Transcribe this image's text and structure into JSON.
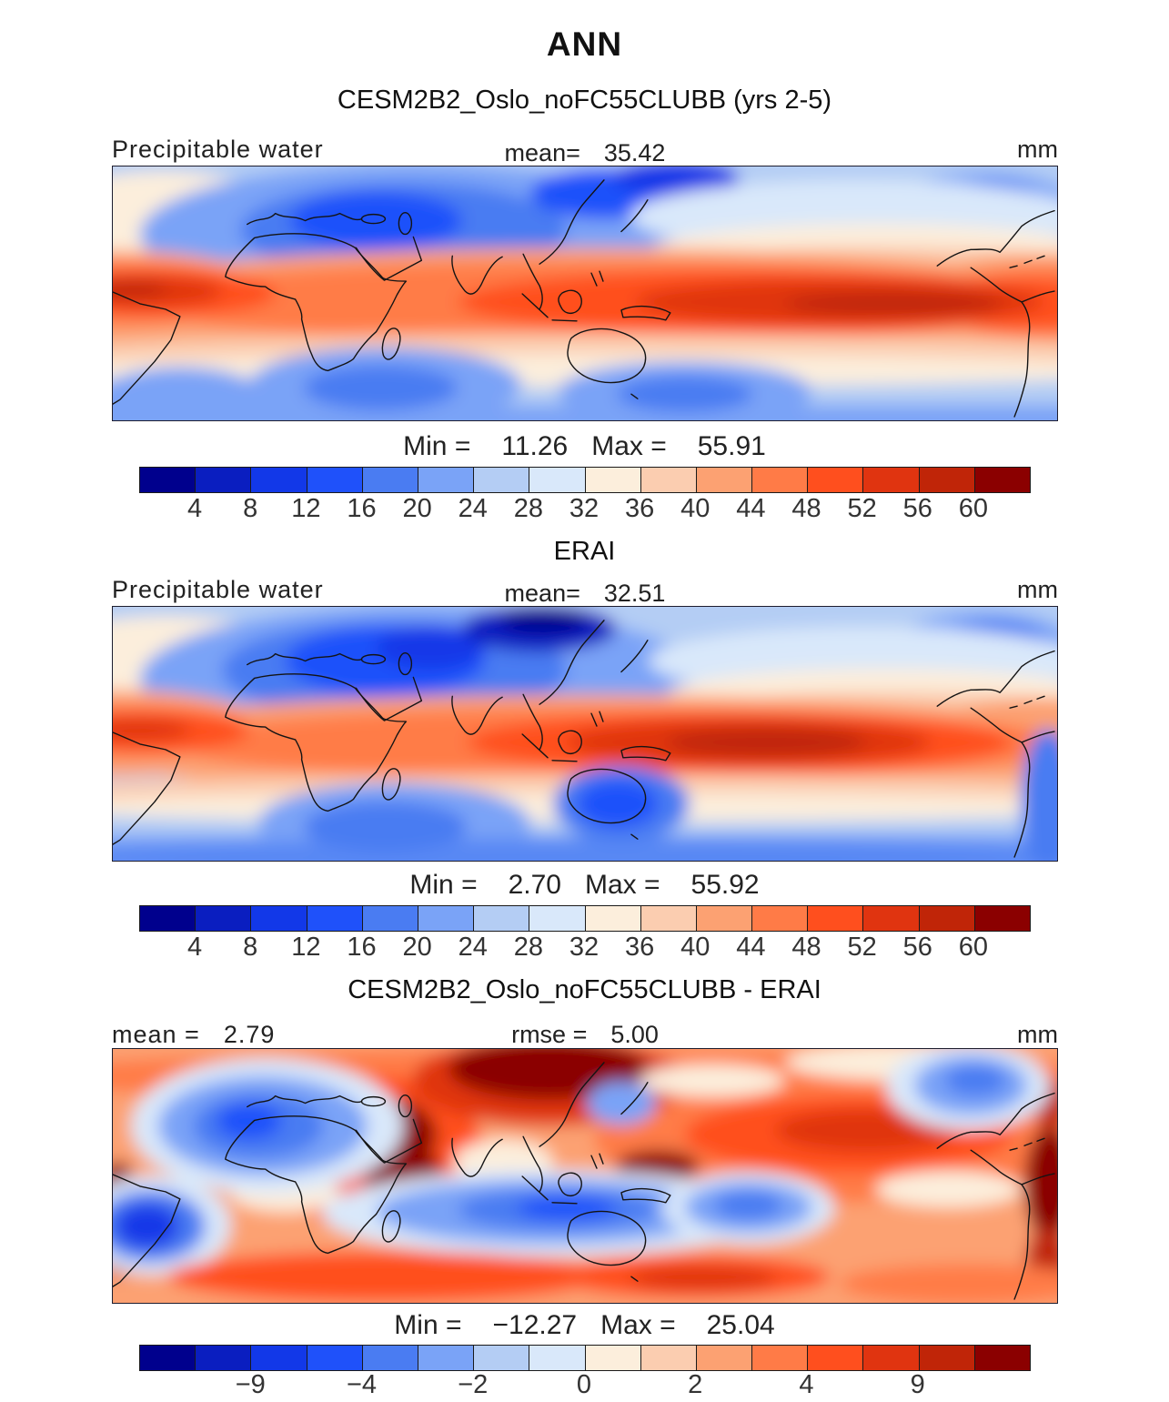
{
  "figure": {
    "title": "ANN",
    "units": "mm"
  },
  "panels": [
    {
      "heading": "CESM2B2_Oslo_noFC55CLUBB (yrs 2-5)",
      "field_label": "Precipitable water",
      "mean_label": "mean=",
      "mean_value": "35.42",
      "units": "mm",
      "min_label": "Min  =",
      "min_value": "11.26",
      "max_label": "Max  =",
      "max_value": "55.91"
    },
    {
      "heading": "ERAI",
      "field_label": "Precipitable water",
      "mean_label": "mean=",
      "mean_value": "32.51",
      "units": "mm",
      "min_label": "Min  =",
      "min_value": "2.70",
      "max_label": "Max  =",
      "max_value": "55.92"
    },
    {
      "heading": "CESM2B2_Oslo_noFC55CLUBB - ERAI",
      "mean_label": "mean  =",
      "mean_value": "2.79",
      "rmse_label": "rmse  =",
      "rmse_value": "5.00",
      "units": "mm",
      "min_label": "Min  =",
      "min_value": "−12.27",
      "max_label": "Max  =",
      "max_value": "25.04"
    }
  ],
  "colorbars": {
    "value": {
      "colors": [
        "#00008D",
        "#0A1EC0",
        "#1238E8",
        "#1F51FA",
        "#4A7CF2",
        "#7AA3F7",
        "#B4CDF4",
        "#D9E8FA",
        "#FCEEDC",
        "#FBCDB0",
        "#FCA172",
        "#FF7B47",
        "#FF4F1E",
        "#E03410",
        "#C02508",
        "#8B0000"
      ],
      "ticks": [
        {
          "text": "4",
          "pos": 1
        },
        {
          "text": "8",
          "pos": 2
        },
        {
          "text": "12",
          "pos": 3
        },
        {
          "text": "16",
          "pos": 4
        },
        {
          "text": "20",
          "pos": 5
        },
        {
          "text": "24",
          "pos": 6
        },
        {
          "text": "28",
          "pos": 7
        },
        {
          "text": "32",
          "pos": 8
        },
        {
          "text": "36",
          "pos": 9
        },
        {
          "text": "40",
          "pos": 10
        },
        {
          "text": "44",
          "pos": 11
        },
        {
          "text": "48",
          "pos": 12
        },
        {
          "text": "52",
          "pos": 13
        },
        {
          "text": "56",
          "pos": 14
        },
        {
          "text": "60",
          "pos": 15
        }
      ]
    },
    "diff": {
      "colors": [
        "#00008D",
        "#0A1EC0",
        "#1238E8",
        "#1F51FA",
        "#4A7CF2",
        "#7AA3F7",
        "#B4CDF4",
        "#D9E8FA",
        "#FCEEDC",
        "#FBCDB0",
        "#FCA172",
        "#FF7B47",
        "#FF4F1E",
        "#E03410",
        "#C02508",
        "#8B0000"
      ],
      "ticks": [
        {
          "text": "−9",
          "pos": 2
        },
        {
          "text": "−4",
          "pos": 4
        },
        {
          "text": "−2",
          "pos": 6
        },
        {
          "text": "0",
          "pos": 8
        },
        {
          "text": "2",
          "pos": 10
        },
        {
          "text": "4",
          "pos": 12
        },
        {
          "text": "9",
          "pos": 14
        }
      ]
    }
  },
  "chart_data": [
    {
      "type": "heatmap",
      "subtype": "global-filled-contour-map",
      "season": "ANN",
      "title": "CESM2B2_Oslo_noFC55CLUBB (yrs 2-5)",
      "variable": "Precipitable water",
      "units": "mm",
      "mean": 35.42,
      "min": 11.26,
      "max": 55.91,
      "contour_levels": [
        4,
        8,
        12,
        16,
        20,
        24,
        28,
        32,
        36,
        40,
        44,
        48,
        52,
        56,
        60
      ],
      "n_color_bins": 16,
      "palette_ref": "colorbars.value",
      "legend_position": "bottom"
    },
    {
      "type": "heatmap",
      "subtype": "global-filled-contour-map",
      "season": "ANN",
      "title": "ERAI",
      "variable": "Precipitable water",
      "units": "mm",
      "mean": 32.51,
      "min": 2.7,
      "max": 55.92,
      "contour_levels": [
        4,
        8,
        12,
        16,
        20,
        24,
        28,
        32,
        36,
        40,
        44,
        48,
        52,
        56,
        60
      ],
      "n_color_bins": 16,
      "palette_ref": "colorbars.value",
      "legend_position": "bottom"
    },
    {
      "type": "heatmap",
      "subtype": "global-filled-contour-difference-map",
      "season": "ANN",
      "title": "CESM2B2_Oslo_noFC55CLUBB - ERAI",
      "variable": "Precipitable water difference",
      "units": "mm",
      "mean": 2.79,
      "rmse": 5.0,
      "min": -12.27,
      "max": 25.04,
      "labeled_levels": [
        -9,
        -4,
        -2,
        0,
        2,
        4,
        9
      ],
      "n_color_bins": 16,
      "palette_ref": "colorbars.diff",
      "legend_position": "bottom"
    }
  ]
}
